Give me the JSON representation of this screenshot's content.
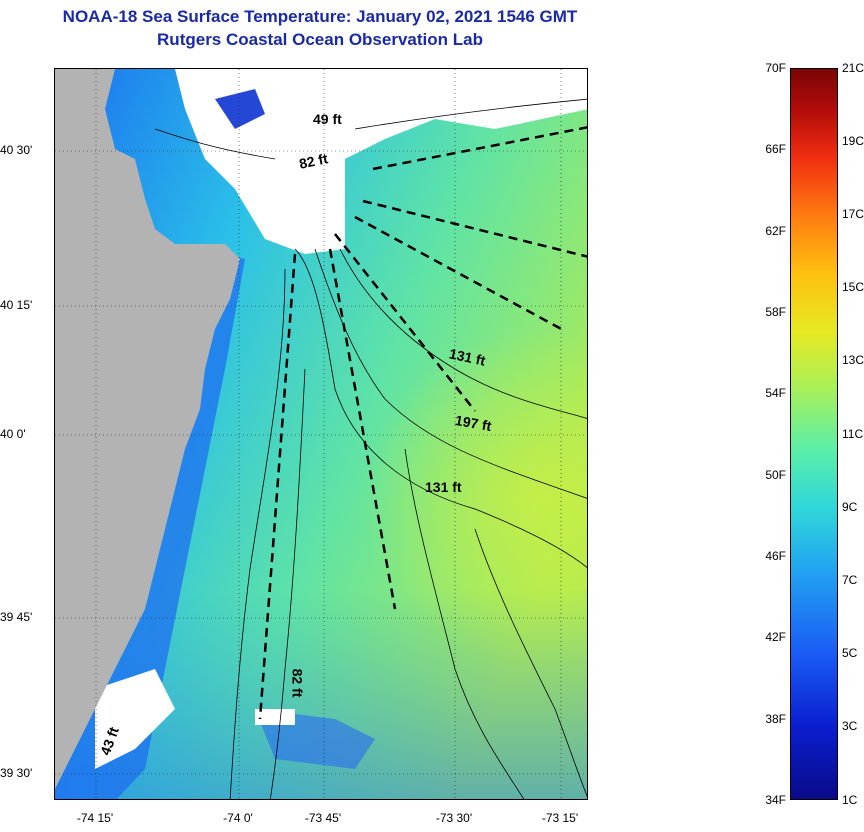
{
  "header": {
    "title_line1": "NOAA-18 Sea Surface Temperature:  January 02, 2021 1546 GMT",
    "title_line2": "Rutgers Coastal Ocean Observation Lab"
  },
  "map": {
    "lat_labels": [
      "40 30'",
      "40 15'",
      "40 0'",
      "39 45'",
      "39 30'"
    ],
    "lon_labels": [
      "-74 15'",
      "-74 0'",
      "-73 45'",
      "-73 30'",
      "-73 15'"
    ],
    "depth_labels": [
      "49 ft",
      "82 ft",
      "131 ft",
      "197 ft",
      "131 ft",
      "82 ft",
      "43 ft"
    ],
    "colors": {
      "land": "#b3b3b3",
      "cloud": "#ffffff",
      "warm_water": "#9ee864",
      "mid_water": "#3cd6cc",
      "cool_water": "#1e8cf0",
      "cold_water": "#1a4ae0"
    }
  },
  "colorbar": {
    "fahrenheit_labels": [
      "70F",
      "66F",
      "62F",
      "58F",
      "54F",
      "50F",
      "46F",
      "42F",
      "38F",
      "34F"
    ],
    "celsius_labels": [
      "21C",
      "19C",
      "17C",
      "15C",
      "13C",
      "11C",
      "9C",
      "7C",
      "5C",
      "3C",
      "1C"
    ]
  }
}
